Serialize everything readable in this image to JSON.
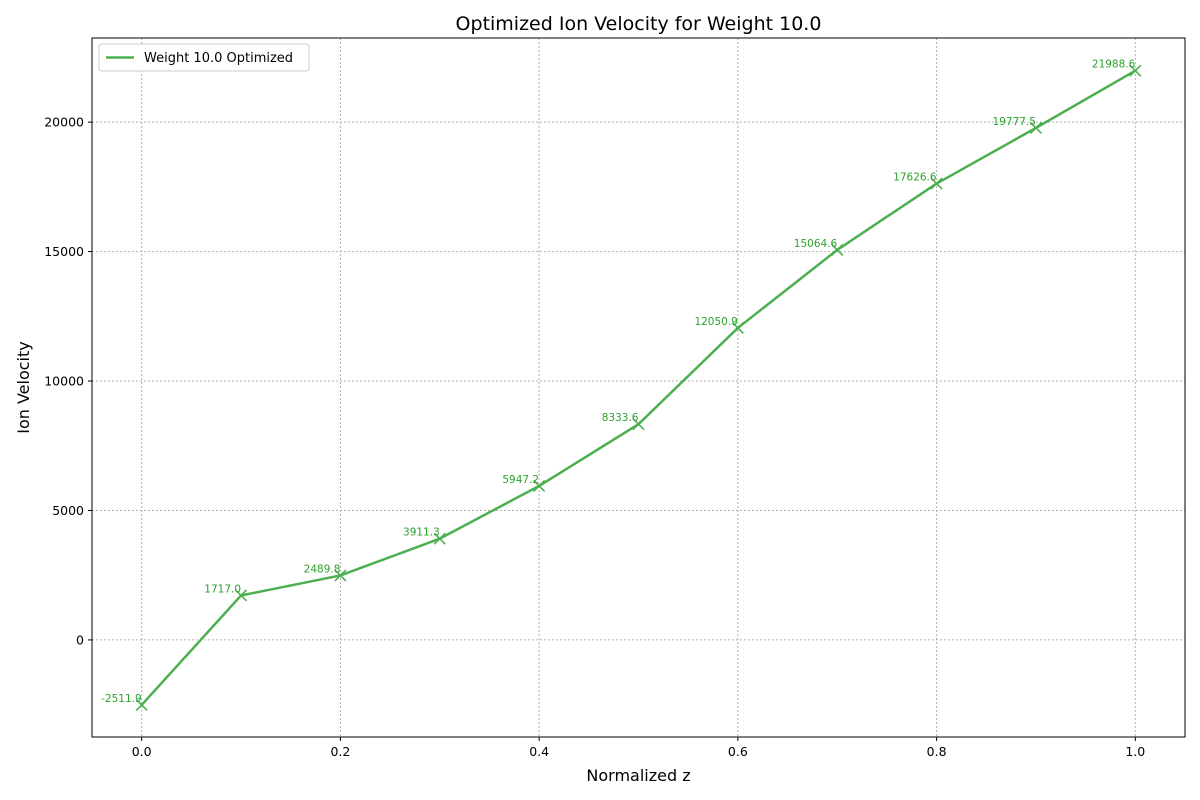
{
  "chart_data": {
    "type": "line",
    "title": "Optimized Ion Velocity for Weight 10.0",
    "xlabel": "Normalized z",
    "ylabel": "Ion Velocity",
    "xlim": [
      -0.05,
      1.05
    ],
    "ylim": [
      -3750,
      23250
    ],
    "xticks": [
      0.0,
      0.2,
      0.4,
      0.6,
      0.8,
      1.0
    ],
    "xtick_labels": [
      "0.0",
      "0.2",
      "0.4",
      "0.6",
      "0.8",
      "1.0"
    ],
    "yticks": [
      0,
      5000,
      10000,
      15000,
      20000
    ],
    "ytick_labels": [
      "0",
      "5000",
      "10000",
      "15000",
      "20000"
    ],
    "grid": true,
    "legend_position": "top-left",
    "series": [
      {
        "name": "Weight 10.0 Optimized",
        "color": "#4caf50",
        "marker": "x",
        "x": [
          0.0,
          0.1,
          0.2,
          0.3,
          0.4,
          0.5,
          0.6,
          0.7,
          0.8,
          0.9,
          1.0
        ],
        "y": [
          -2511.9,
          1717.0,
          2489.8,
          3911.3,
          5947.2,
          8333.6,
          12050.9,
          15064.6,
          17626.6,
          19777.5,
          21988.6
        ],
        "labels": [
          "-2511.9",
          "1717.0",
          "2489.8",
          "3911.3",
          "5947.2",
          "8333.6",
          "12050.9",
          "15064.6",
          "17626.6",
          "19777.5",
          "21988.6"
        ]
      }
    ]
  }
}
